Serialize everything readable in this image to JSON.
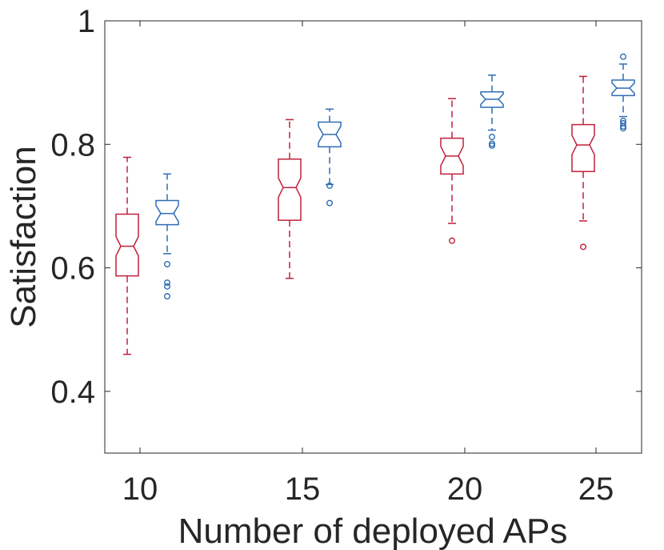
{
  "chart_data": {
    "type": "box",
    "xlabel": "Number of deployed APs",
    "ylabel": "Satisfaction",
    "ylim": [
      0.3,
      1.0
    ],
    "yticks": [
      0.4,
      0.6,
      0.8,
      1.0
    ],
    "ytick_labels": [
      "0.4",
      "0.6",
      "0.8",
      "1"
    ],
    "categories": [
      "10",
      "15",
      "20",
      "25"
    ],
    "notched": true,
    "grid": false,
    "series": [
      {
        "color": "#c0203c",
        "whisker_style": "dashed",
        "boxes": [
          {
            "category": "10",
            "whisker_low": 0.46,
            "q1": 0.587,
            "median": 0.635,
            "q3": 0.687,
            "whisker_high": 0.779,
            "outliers": []
          },
          {
            "category": "15",
            "whisker_low": 0.583,
            "q1": 0.677,
            "median": 0.73,
            "q3": 0.776,
            "whisker_high": 0.84,
            "outliers": []
          },
          {
            "category": "20",
            "whisker_low": 0.672,
            "q1": 0.752,
            "median": 0.781,
            "q3": 0.81,
            "whisker_high": 0.874,
            "outliers": [
              0.644
            ]
          },
          {
            "category": "25",
            "whisker_low": 0.676,
            "q1": 0.756,
            "median": 0.799,
            "q3": 0.832,
            "whisker_high": 0.91,
            "outliers": [
              0.634
            ]
          }
        ]
      },
      {
        "color": "#2f6db5",
        "whisker_style": "dashed",
        "boxes": [
          {
            "category": "10",
            "whisker_low": 0.623,
            "q1": 0.67,
            "median": 0.688,
            "q3": 0.709,
            "whisker_high": 0.752,
            "outliers": [
              0.606,
              0.576,
              0.57,
              0.554
            ]
          },
          {
            "category": "15",
            "whisker_low": 0.735,
            "q1": 0.796,
            "median": 0.816,
            "q3": 0.836,
            "whisker_high": 0.857,
            "outliers": [
              0.733,
              0.705
            ]
          },
          {
            "category": "20",
            "whisker_low": 0.823,
            "q1": 0.86,
            "median": 0.873,
            "q3": 0.885,
            "whisker_high": 0.912,
            "outliers": [
              0.812,
              0.801,
              0.798
            ]
          },
          {
            "category": "25",
            "whisker_low": 0.845,
            "q1": 0.879,
            "median": 0.891,
            "q3": 0.904,
            "whisker_high": 0.93,
            "outliers": [
              0.942,
              0.838,
              0.834,
              0.829,
              0.826
            ]
          }
        ]
      }
    ]
  }
}
